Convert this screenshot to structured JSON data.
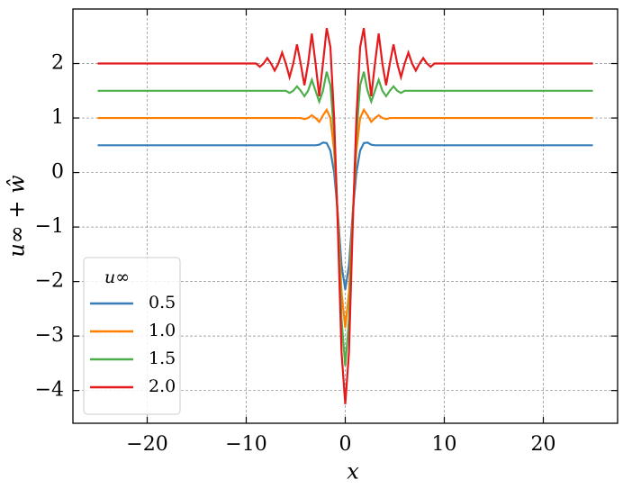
{
  "chart_data": {
    "type": "line",
    "x_label": "x",
    "y_label": "u∞ + ŵ",
    "legend_title": "u∞",
    "legend": "lower left",
    "grid": true,
    "x": [
      -25,
      -20,
      -15,
      -12,
      -10.5,
      -9,
      -8.625,
      -8.25,
      -7.875,
      -7.5,
      -7.125,
      -6.75,
      -6.375,
      -6,
      -5.625,
      -5.25,
      -4.875,
      -4.5,
      -4.125,
      -3.75,
      -3.375,
      -3,
      -2.625,
      -2.25,
      -1.875,
      -1.5,
      -1.125,
      -0.75,
      -0.375,
      0,
      0.375,
      0.75,
      1.125,
      1.5,
      1.875,
      2.25,
      2.625,
      3,
      3.375,
      3.75,
      4.125,
      4.5,
      4.875,
      5.25,
      5.625,
      6,
      6.375,
      6.75,
      7.125,
      7.5,
      7.875,
      8.25,
      8.625,
      9,
      10.5,
      12,
      15,
      20,
      25
    ],
    "series": [
      {
        "name": "0.5",
        "color": "#377eb8",
        "values": [
          0.5,
          0.5,
          0.5,
          0.5,
          0.5,
          0.5,
          0.5,
          0.5,
          0.5,
          0.5,
          0.5,
          0.5,
          0.5,
          0.5,
          0.5,
          0.5,
          0.5,
          0.5,
          0.5,
          0.5,
          0.5,
          0.5,
          0.51,
          0.55,
          0.54,
          0.4,
          0,
          -0.75,
          -1.7,
          -2.15,
          -1.7,
          -0.75,
          0,
          0.4,
          0.54,
          0.55,
          0.51,
          0.5,
          0.5,
          0.5,
          0.5,
          0.5,
          0.5,
          0.5,
          0.5,
          0.5,
          0.5,
          0.5,
          0.5,
          0.5,
          0.5,
          0.5,
          0.5,
          0.5,
          0.5,
          0.5,
          0.5,
          0.5,
          0.5
        ]
      },
      {
        "name": "1.0",
        "color": "#ff7f00",
        "values": [
          1,
          1,
          1,
          1,
          1,
          1,
          1,
          1,
          1,
          1,
          1,
          1,
          1,
          1,
          1,
          1,
          1,
          1,
          0.98,
          1,
          1.05,
          1,
          0.93,
          1.05,
          1.15,
          1,
          0.4,
          -0.8,
          -2.2,
          -2.85,
          -2.2,
          -0.8,
          0.4,
          1,
          1.15,
          1.05,
          0.93,
          1,
          1.05,
          1,
          0.98,
          1,
          1,
          1,
          1,
          1,
          1,
          1,
          1,
          1,
          1,
          1,
          1,
          1,
          1,
          1,
          1,
          1,
          1
        ]
      },
      {
        "name": "1.5",
        "color": "#4daf4a",
        "values": [
          1.5,
          1.5,
          1.5,
          1.5,
          1.5,
          1.5,
          1.5,
          1.5,
          1.5,
          1.5,
          1.5,
          1.5,
          1.5,
          1.5,
          1.46,
          1.5,
          1.58,
          1.5,
          1.4,
          1.5,
          1.7,
          1.5,
          1.3,
          1.5,
          1.85,
          1.6,
          0.7,
          -0.9,
          -2.7,
          -3.55,
          -2.7,
          -0.9,
          0.7,
          1.6,
          1.85,
          1.5,
          1.3,
          1.5,
          1.7,
          1.5,
          1.4,
          1.5,
          1.58,
          1.5,
          1.46,
          1.5,
          1.5,
          1.5,
          1.5,
          1.5,
          1.5,
          1.5,
          1.5,
          1.5,
          1.5,
          1.5,
          1.5,
          1.5,
          1.5
        ]
      },
      {
        "name": "2.0",
        "color": "#e41a1c",
        "values": [
          2,
          2,
          2,
          2,
          2,
          2,
          1.94,
          2,
          2.1,
          2,
          1.87,
          2,
          2.2,
          2,
          1.75,
          2,
          2.35,
          2,
          1.6,
          2,
          2.55,
          2,
          1.4,
          2,
          2.65,
          2.3,
          1,
          -1,
          -3.3,
          -4.25,
          -3.3,
          -1,
          1,
          2.3,
          2.65,
          2,
          1.4,
          2,
          2.55,
          2,
          1.6,
          2,
          2.35,
          2,
          1.75,
          2,
          2.2,
          2,
          1.87,
          2,
          2.1,
          2,
          1.94,
          2,
          2,
          2,
          2,
          2,
          2
        ]
      }
    ],
    "xlim": [
      -27.5,
      27.5
    ],
    "ylim": [
      -4.6,
      3.0
    ],
    "xticks": [
      {
        "value": -20,
        "label": "−20"
      },
      {
        "value": -10,
        "label": "−10"
      },
      0,
      10,
      20
    ],
    "yticks": [
      {
        "value": -4,
        "label": "−4"
      },
      {
        "value": -3,
        "label": "−3"
      },
      {
        "value": -2,
        "label": "−2"
      },
      {
        "value": -1,
        "label": "−1"
      },
      0,
      1,
      2
    ]
  }
}
